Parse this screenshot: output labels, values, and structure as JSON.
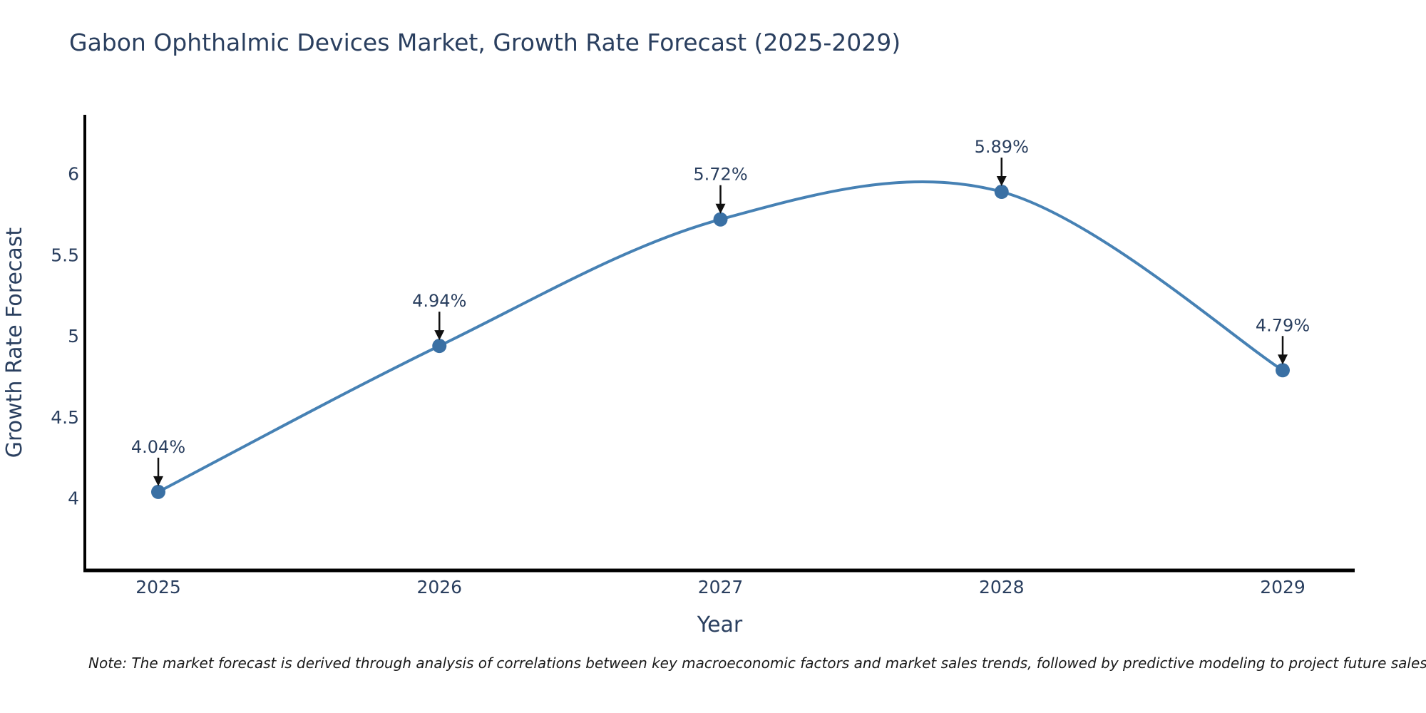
{
  "title": "Gabon Ophthalmic Devices Market, Growth Rate Forecast (2025-2029)",
  "note": "Note: The market forecast is derived through analysis of correlations between key macroeconomic factors and market sales trends, followed by predictive modeling to project future sales.",
  "chart_data": {
    "type": "line",
    "line_shape": "spline",
    "title": "Gabon Ophthalmic Devices Market, Growth Rate Forecast (2025-2029)",
    "xlabel": "Year",
    "ylabel": "Growth Rate Forecast",
    "categories": [
      "2025",
      "2026",
      "2027",
      "2028",
      "2029"
    ],
    "x": [
      2025,
      2026,
      2027,
      2028,
      2029
    ],
    "values": [
      4.04,
      4.94,
      5.72,
      5.89,
      4.79
    ],
    "point_labels": [
      "4.04%",
      "4.94%",
      "5.72%",
      "5.89%",
      "4.79%"
    ],
    "ytick_labels": [
      "4",
      "4.5",
      "5",
      "5.5",
      "6"
    ],
    "ytick_values": [
      4,
      4.5,
      5,
      5.5,
      6
    ],
    "ylim": [
      3.56,
      6.36
    ],
    "xlim": [
      2024.74,
      2029.26
    ],
    "grid": false,
    "legend_position": "none",
    "markers": true,
    "annotations_have_arrows": true,
    "colors": {
      "line": "#4681b4",
      "marker": "#3a70a4",
      "axis": "#000000",
      "text": "#2a3f5f",
      "arrow": "#111111",
      "note_text": "#1a1a1a",
      "background": "#ffffff"
    }
  }
}
